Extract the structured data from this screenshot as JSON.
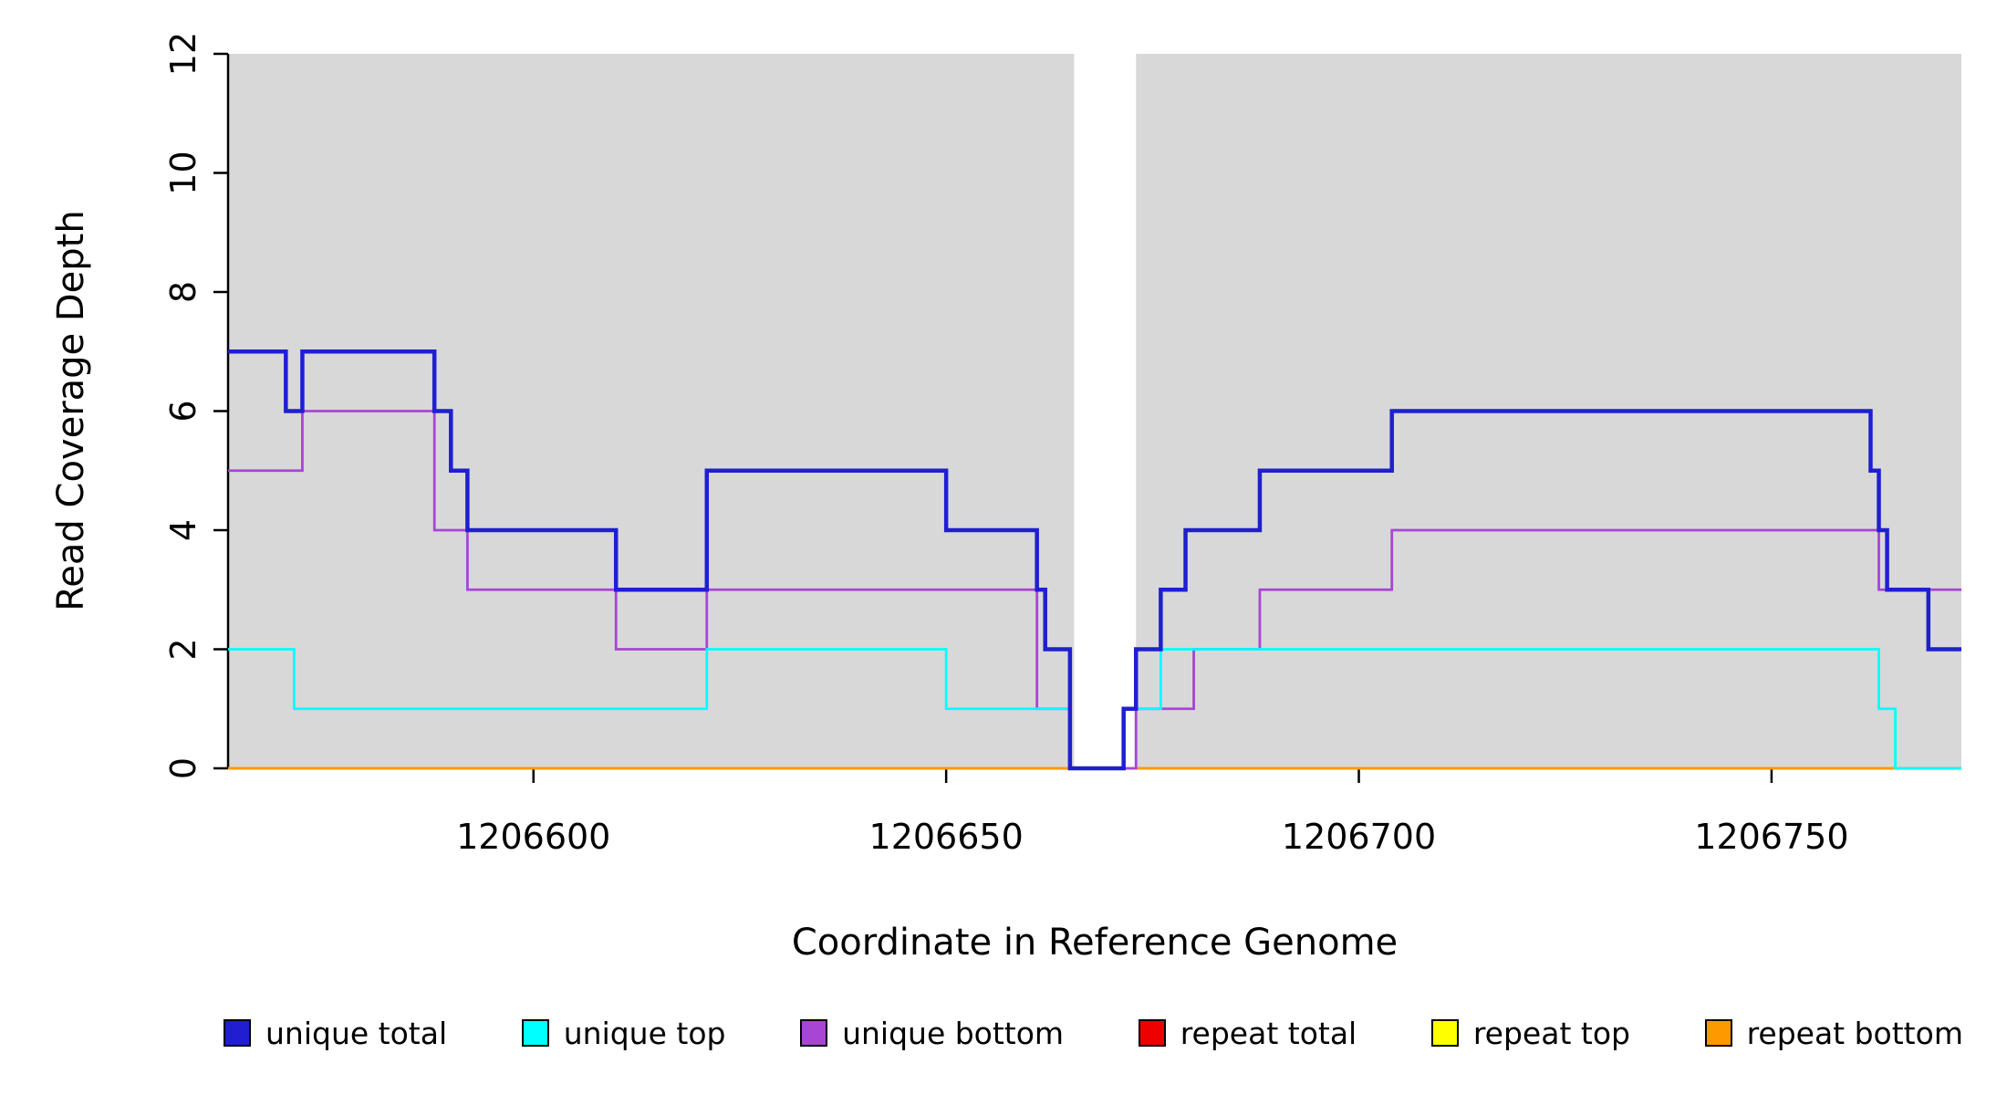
{
  "chart_data": {
    "type": "line",
    "style": "step-after",
    "title": "",
    "xlabel": "Coordinate in Reference Genome",
    "ylabel": "Read Coverage Depth",
    "xlim": [
      1206563,
      1206773
    ],
    "ylim": [
      0,
      12
    ],
    "xticks": [
      1206600,
      1206650,
      1206700,
      1206750
    ],
    "yticks": [
      0,
      2,
      4,
      6,
      8,
      10,
      12
    ],
    "grid": false,
    "plot_background": "#D8D8D8",
    "gap_region": {
      "start": 1206665.5,
      "end": 1206673
    },
    "legend_position": "bottom",
    "series": [
      {
        "name": "unique total",
        "color": "#1F1FD1",
        "linewidth": 4.5,
        "points": [
          [
            1206563,
            7
          ],
          [
            1206570,
            6
          ],
          [
            1206572,
            7
          ],
          [
            1206588,
            6
          ],
          [
            1206590,
            5
          ],
          [
            1206592,
            4
          ],
          [
            1206610,
            3
          ],
          [
            1206621,
            5
          ],
          [
            1206650,
            4
          ],
          [
            1206661,
            3
          ],
          [
            1206662,
            2
          ],
          [
            1206665,
            0
          ],
          [
            1206671.5,
            1
          ],
          [
            1206673,
            2
          ],
          [
            1206676,
            3
          ],
          [
            1206679,
            4
          ],
          [
            1206688,
            5
          ],
          [
            1206704,
            6
          ],
          [
            1206762,
            5
          ],
          [
            1206763,
            4
          ],
          [
            1206764,
            3
          ],
          [
            1206769,
            2
          ]
        ]
      },
      {
        "name": "unique top",
        "color": "#00FFFF",
        "linewidth": 2.8,
        "points": [
          [
            1206563,
            2
          ],
          [
            1206571,
            1
          ],
          [
            1206621,
            2
          ],
          [
            1206650,
            1
          ],
          [
            1206665,
            0
          ],
          [
            1206671.5,
            1
          ],
          [
            1206676,
            2
          ],
          [
            1206763,
            1
          ],
          [
            1206765,
            0
          ]
        ]
      },
      {
        "name": "unique bottom",
        "color": "#A845D4",
        "linewidth": 2.8,
        "points": [
          [
            1206563,
            5
          ],
          [
            1206572,
            6
          ],
          [
            1206588,
            4
          ],
          [
            1206592,
            3
          ],
          [
            1206610,
            2
          ],
          [
            1206621,
            3
          ],
          [
            1206661,
            1
          ],
          [
            1206665,
            0
          ],
          [
            1206673,
            1
          ],
          [
            1206680,
            2
          ],
          [
            1206688,
            3
          ],
          [
            1206704,
            4
          ],
          [
            1206763,
            3
          ]
        ]
      },
      {
        "name": "repeat total",
        "color": "#EE0000",
        "linewidth": 2.8,
        "points": [
          [
            1206563,
            0
          ]
        ]
      },
      {
        "name": "repeat top",
        "color": "#FFFF00",
        "linewidth": 2.8,
        "points": [
          [
            1206563,
            0
          ]
        ]
      },
      {
        "name": "repeat bottom",
        "color": "#FF9900",
        "linewidth": 2.8,
        "points": [
          [
            1206563,
            0
          ]
        ]
      }
    ],
    "draw_order": [
      3,
      4,
      5,
      2,
      1,
      0
    ]
  }
}
